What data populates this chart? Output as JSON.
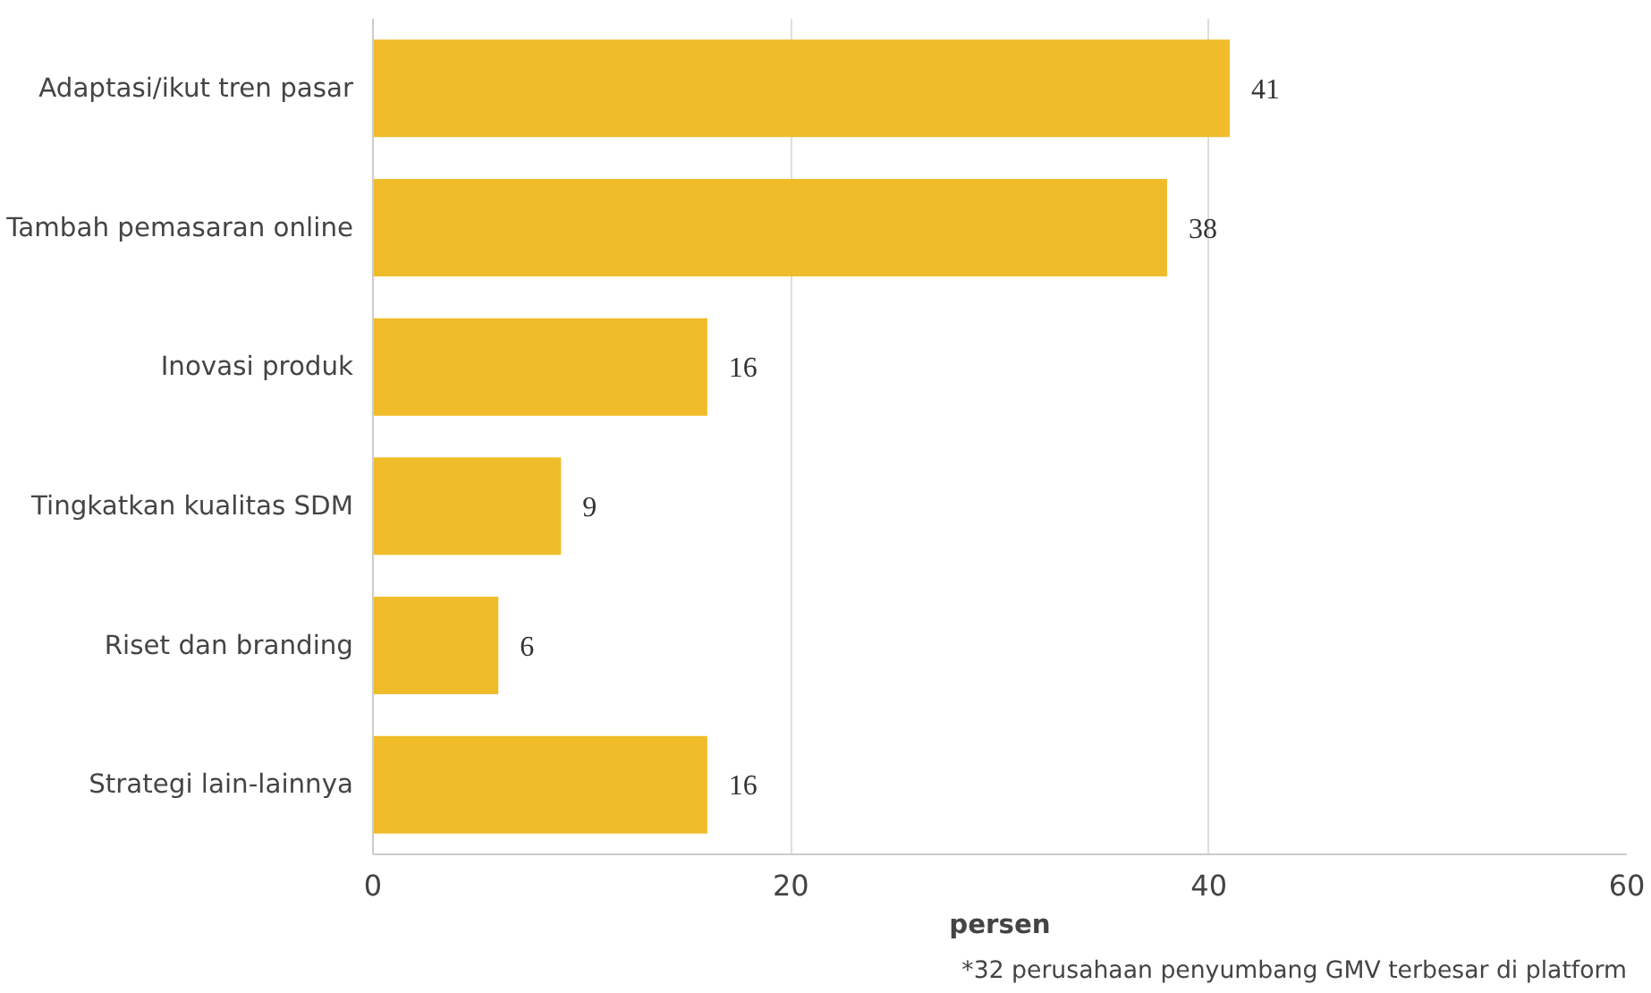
{
  "chart_data": {
    "type": "bar",
    "orientation": "horizontal",
    "xlabel": "persen",
    "categories": [
      "Adaptasi/ikut tren pasar",
      "Tambah pemasaran online",
      "Inovasi produk",
      "Tingkatkan kualitas SDM",
      "Riset dan branding",
      "Strategi lain-lainnya"
    ],
    "values": [
      41,
      38,
      16,
      9,
      6,
      16
    ],
    "color": "#f0bc2a",
    "data_labels": true,
    "xlim": [
      0,
      60
    ],
    "xticks": [
      0,
      20,
      40,
      60
    ],
    "grid": "x",
    "annotations": [
      "*32 perusahaan penyumbang GMV terbesar di platform"
    ]
  }
}
